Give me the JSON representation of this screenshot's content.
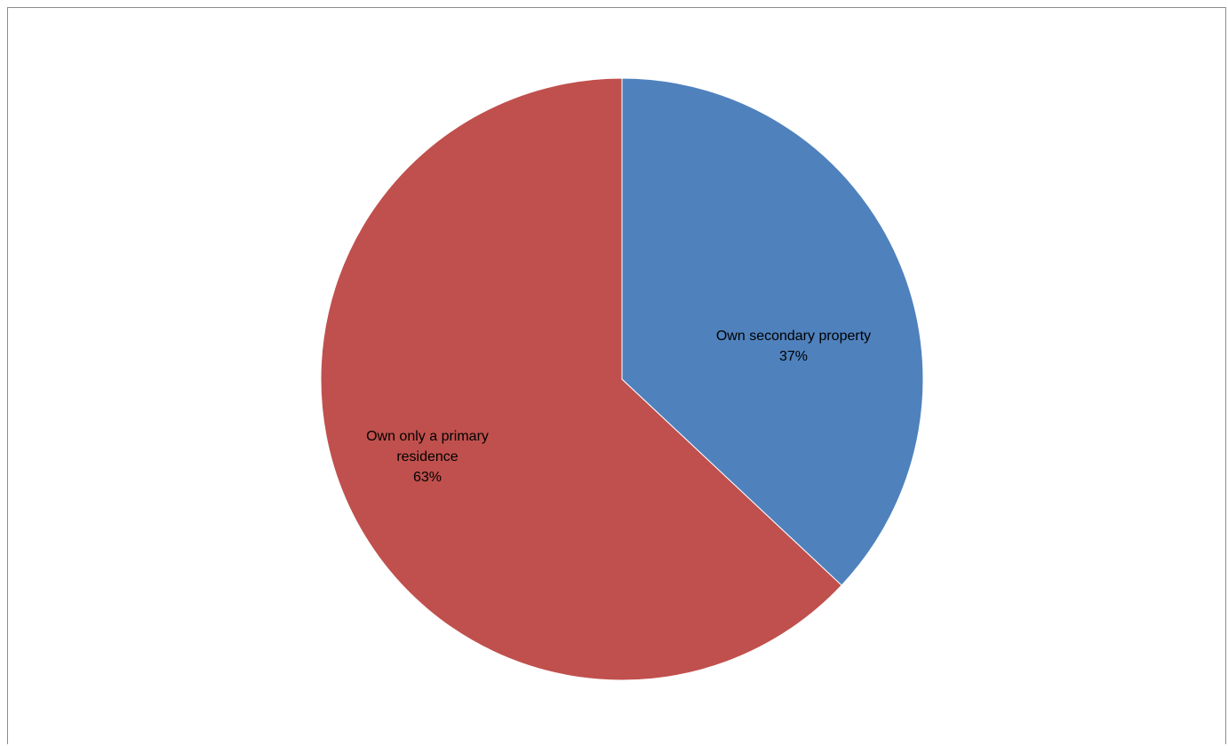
{
  "chart_data": {
    "type": "pie",
    "title": "",
    "start_angle_deg": 0,
    "direction": "clockwise",
    "slices": [
      {
        "label_lines": [
          "Own secondary property"
        ],
        "percent_label": "37%",
        "value": 37,
        "color": "#4f81bd"
      },
      {
        "label_lines": [
          "Own only a primary",
          "residence"
        ],
        "percent_label": "63%",
        "value": 63,
        "color": "#c0504d"
      }
    ],
    "legend": "none"
  }
}
